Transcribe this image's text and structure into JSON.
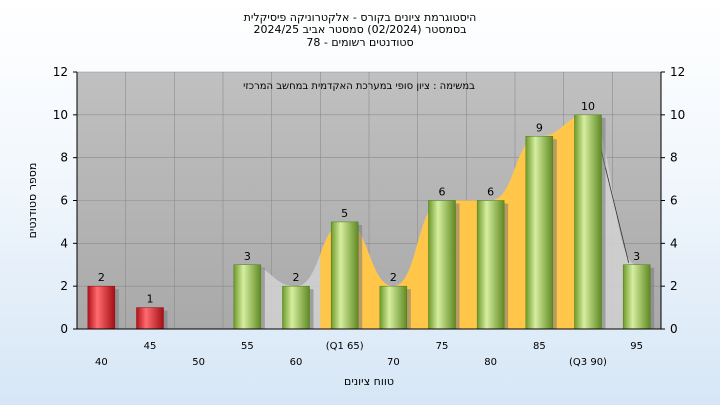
{
  "chart_data": {
    "type": "bar",
    "title_lines": [
      "היסטוגרמת ציונים בקורס - אלקטרוניקה פיסיקלית",
      "בסמסטר  (02/2024)  סמסטר אביב 2024/25",
      "סטודנטים רשומים - 78"
    ],
    "annotation": "במשימה : ציון סופי במערכת האקדמית במחשב המרכזי",
    "xlabel": "טווח ציונים",
    "ylabel": "מספר סטודנטים",
    "ylim": [
      0,
      12
    ],
    "yticks": [
      0,
      2,
      4,
      6,
      8,
      10,
      12
    ],
    "categories": [
      "40",
      "45",
      "50",
      "55",
      "60",
      "(Q1 65)",
      "70",
      "75",
      "80",
      "85",
      "(Q3 90)",
      "95"
    ],
    "values": [
      2,
      1,
      0,
      3,
      2,
      5,
      2,
      6,
      6,
      9,
      10,
      3
    ],
    "data_labels": [
      "2",
      "1",
      "",
      "3",
      "2",
      "5",
      "2",
      "6",
      "6",
      "9",
      "10",
      "3"
    ],
    "series_colors": [
      "red",
      "red",
      "red",
      "green",
      "green",
      "green",
      "green",
      "green",
      "green",
      "green",
      "green",
      "green"
    ],
    "colors": {
      "plot_background": "#b4b4b4",
      "red_bar": "#e0272c",
      "green_bar": "#9ac24a",
      "area_fill": "#ffc64a",
      "area_light": "#d2d2d2"
    },
    "grid": true
  }
}
